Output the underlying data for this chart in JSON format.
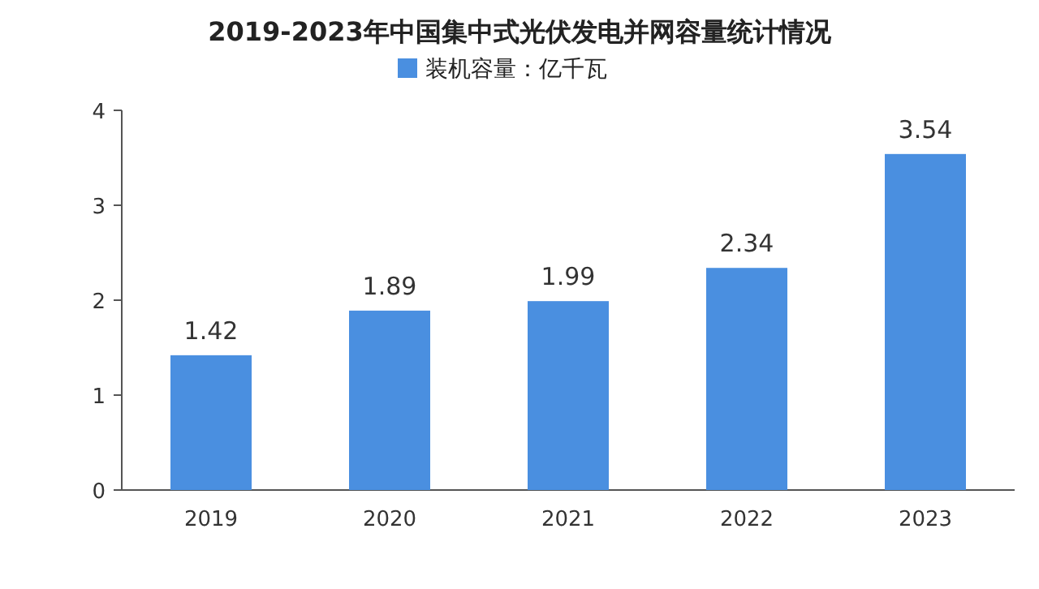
{
  "chart_data": {
    "type": "bar",
    "title": "2019-2023年中国集中式光伏发电并网容量统计情况",
    "categories": [
      "2019",
      "2020",
      "2021",
      "2022",
      "2023"
    ],
    "series": [
      {
        "name": "装机容量：亿千瓦",
        "color": "#4a8fe0",
        "values": [
          1.42,
          1.89,
          1.99,
          2.34,
          3.54
        ]
      }
    ],
    "ylim": [
      0,
      4
    ],
    "yticks": [
      0,
      1,
      2,
      3,
      4
    ],
    "data_labels": true,
    "legend": "top"
  }
}
